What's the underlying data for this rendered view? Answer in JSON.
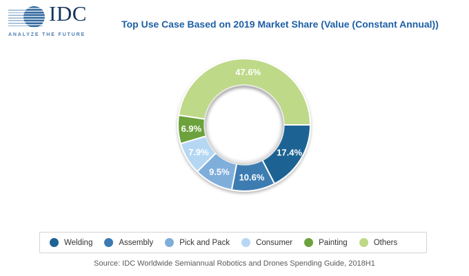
{
  "logo": {
    "text": "IDC",
    "tagline": "ANALYZE THE FUTURE"
  },
  "header": {
    "title": "Top Use Case Based on 2019 Market Share (Value (Constant Annual))"
  },
  "chart_data": {
    "type": "pie",
    "subtype": "donut",
    "title": "Top Use Case Based on 2019 Market Share (Value (Constant Annual))",
    "values_unit": "percent of 2019 market share (value, constant annual)",
    "start_angle_deg": 90,
    "direction": "clockwise",
    "inner_radius_ratio": 0.6,
    "legend_position": "bottom",
    "data_labels": "value percent, white, inside ring",
    "segments": [
      {
        "label": "Welding",
        "value": 17.4,
        "color": "#1F6394"
      },
      {
        "label": "Assembly",
        "value": 10.6,
        "color": "#3C7BB1"
      },
      {
        "label": "Pick and Pack",
        "value": 9.5,
        "color": "#7FAEDB"
      },
      {
        "label": "Consumer",
        "value": 7.9,
        "color": "#B5D7F3"
      },
      {
        "label": "Painting",
        "value": 6.9,
        "color": "#6CA23E"
      },
      {
        "label": "Others",
        "value": 47.6,
        "color": "#BED988"
      }
    ]
  },
  "footer": {
    "source": "Source: IDC Worldwide Semiannual Robotics and Drones Spending Guide, 2018H1"
  },
  "theme": {
    "title_color": "#1D5FA6",
    "legend_border": "#D4D4D4",
    "legend_text": "#333333",
    "source_text": "#595959",
    "background": "#FFFFFF",
    "label_text": "#FFFFFF"
  }
}
